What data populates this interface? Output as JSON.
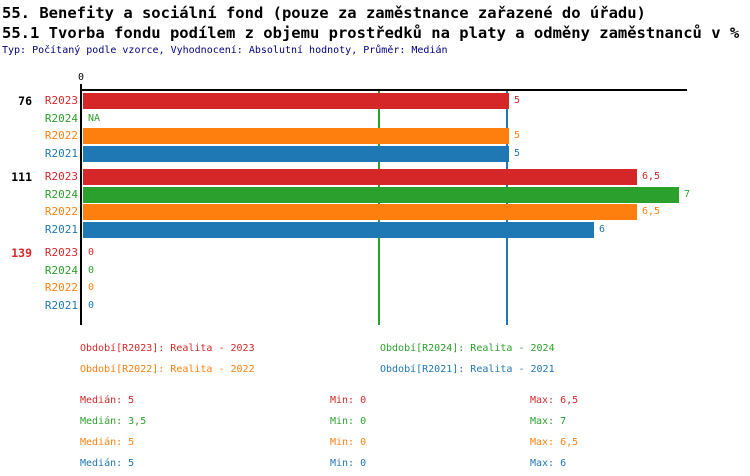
{
  "chart_data": {
    "type": "bar",
    "orientation": "horizontal",
    "title": "55. Benefity a sociální fond (pouze za zaměstnance zařazené do úřadu)",
    "subtitle": "55.1 Tvorba fondu podílem z objemu prostředků na platy a odměny zaměstnanců v %",
    "meta": "Typ: Počítaný podle vzorce, Vyhodnocení: Absolutní hodnoty, Průměr: Medián",
    "axis": {
      "origin_label": "0",
      "xlim": [
        0,
        7.1
      ],
      "grid": false
    },
    "series_order": [
      "R2023",
      "R2024",
      "R2022",
      "R2021"
    ],
    "series_colors": {
      "R2023": "#d62728",
      "R2024": "#2ca02c",
      "R2022": "#ff7f0e",
      "R2021": "#1f77b4"
    },
    "groups": [
      {
        "label": "76",
        "label_color": "#000000",
        "bars": [
          {
            "series": "R2023",
            "value": 5,
            "display": "5"
          },
          {
            "series": "R2024",
            "value": null,
            "display": "NA"
          },
          {
            "series": "R2022",
            "value": 5,
            "display": "5"
          },
          {
            "series": "R2021",
            "value": 5,
            "display": "5"
          }
        ]
      },
      {
        "label": "111",
        "label_color": "#000000",
        "bars": [
          {
            "series": "R2023",
            "value": 6.5,
            "display": "6,5"
          },
          {
            "series": "R2024",
            "value": 7,
            "display": "7"
          },
          {
            "series": "R2022",
            "value": 6.5,
            "display": "6,5"
          },
          {
            "series": "R2021",
            "value": 6,
            "display": "6"
          }
        ]
      },
      {
        "label": "139",
        "label_color": "#d62728",
        "bars": [
          {
            "series": "R2023",
            "value": 0,
            "display": "0"
          },
          {
            "series": "R2024",
            "value": 0,
            "display": "0"
          },
          {
            "series": "R2022",
            "value": 0,
            "display": "0"
          },
          {
            "series": "R2021",
            "value": 0,
            "display": "0"
          }
        ]
      }
    ],
    "reference_lines": [
      {
        "series": "R2024",
        "value": 3.5,
        "color": "#2ca02c"
      },
      {
        "series": "R2021",
        "value": 5,
        "color": "#1f77b4"
      }
    ],
    "legend": [
      {
        "series": "R2023",
        "text": "Období[R2023]: Realita - 2023",
        "color": "#d62728"
      },
      {
        "series": "R2024",
        "text": "Období[R2024]: Realita - 2024",
        "color": "#2ca02c"
      },
      {
        "series": "R2022",
        "text": "Období[R2022]: Realita - 2022",
        "color": "#ff7f0e"
      },
      {
        "series": "R2021",
        "text": "Období[R2021]: Realita - 2021",
        "color": "#1f77b4"
      }
    ],
    "stats": [
      {
        "series": "R2023",
        "median": "Medián: 5",
        "min": "Min: 0",
        "max": "Max: 6,5",
        "color": "#d62728"
      },
      {
        "series": "R2024",
        "median": "Medián: 3,5",
        "min": "Min: 0",
        "max": "Max: 7",
        "color": "#2ca02c"
      },
      {
        "series": "R2022",
        "median": "Medián: 5",
        "min": "Min: 0",
        "max": "Max: 6,5",
        "color": "#ff7f0e"
      },
      {
        "series": "R2021",
        "median": "Medián: 5",
        "min": "Min: 0",
        "max": "Max: 6",
        "color": "#1f77b4"
      }
    ]
  }
}
